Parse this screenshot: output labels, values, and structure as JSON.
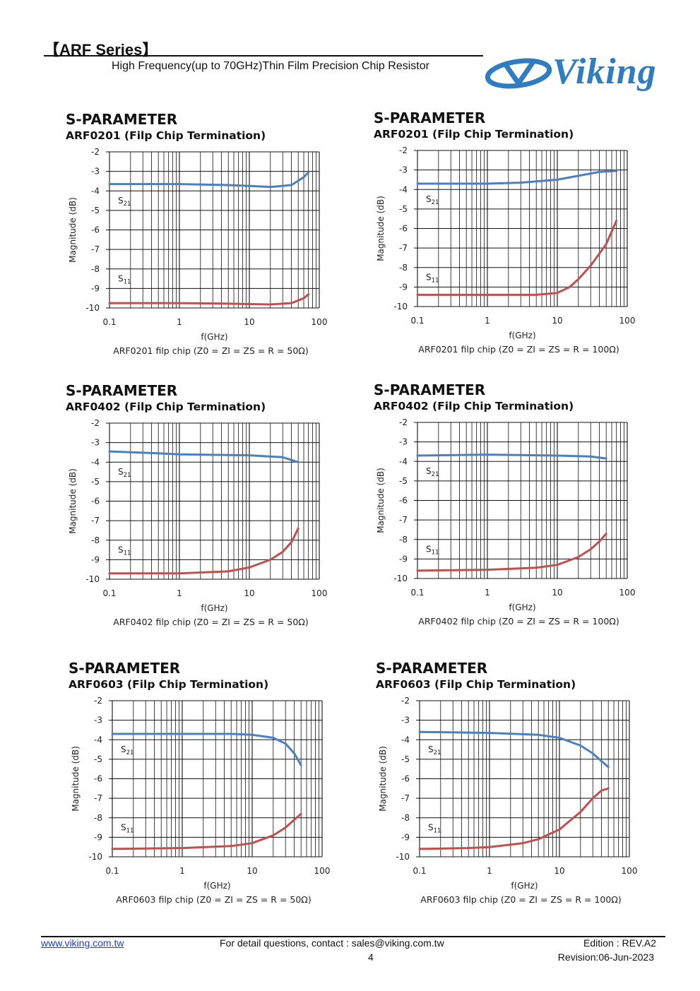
{
  "header": {
    "series_title": "【ARF Series】",
    "subtitle": "High Frequency(up to 70GHz)Thin Film Precision Chip Resistor",
    "logo_text": "Viking",
    "brand_color": "#2f7cc0"
  },
  "footer": {
    "website": "www.viking.com.tw",
    "contact": "For detail questions, contact : sales@viking.com.tw",
    "page_number": "4",
    "edition": "Edition : REV.A2",
    "revision": "Revision:06-Jun-2023"
  },
  "colors": {
    "s21": "#4a7fc1",
    "s11": "#c0504d",
    "grid": "#111111"
  },
  "chart_data": [
    {
      "type": "line",
      "section_title": "S-PARAMETER",
      "title": "ARF0201 (Filp Chip Termination)",
      "caption": "ARF0201 filp chip (Z0 = ZI = ZS = R = 50Ω)",
      "xlabel": "f(GHz)",
      "ylabel": "Magnitude (dB)",
      "xscale": "log",
      "xlim": [
        0.1,
        100
      ],
      "ylim": [
        -10,
        -2
      ],
      "xticks": [
        "0.1",
        "1",
        "10",
        "100"
      ],
      "yticks": [
        "-2",
        "-3",
        "-4",
        "-5",
        "-6",
        "-7",
        "-8",
        "-9",
        "-10"
      ],
      "series": [
        {
          "name": "S21",
          "x": [
            0.1,
            1,
            5,
            10,
            20,
            40,
            60,
            70
          ],
          "y": [
            -3.65,
            -3.65,
            -3.7,
            -3.75,
            -3.8,
            -3.7,
            -3.3,
            -3.05
          ]
        },
        {
          "name": "S11",
          "x": [
            0.1,
            1,
            5,
            10,
            20,
            40,
            60,
            70
          ],
          "y": [
            -9.75,
            -9.75,
            -9.78,
            -9.8,
            -9.82,
            -9.75,
            -9.5,
            -9.3
          ]
        }
      ]
    },
    {
      "type": "line",
      "section_title": "S-PARAMETER",
      "title": "ARF0201 (Filp Chip Termination)",
      "caption": "ARF0201 filp chip (Z0 = ZI = ZS = R = 100Ω)",
      "xlabel": "f(GHz)",
      "ylabel": "Magnitude (dB)",
      "xscale": "log",
      "xlim": [
        0.1,
        100
      ],
      "ylim": [
        -10,
        -2
      ],
      "xticks": [
        "0.1",
        "1",
        "10",
        "100"
      ],
      "yticks": [
        "-2",
        "-3",
        "-4",
        "-5",
        "-6",
        "-7",
        "-8",
        "-9",
        "-10"
      ],
      "series": [
        {
          "name": "S21",
          "x": [
            0.1,
            1,
            3,
            10,
            20,
            40,
            70
          ],
          "y": [
            -3.7,
            -3.7,
            -3.65,
            -3.5,
            -3.3,
            -3.1,
            -3.05
          ]
        },
        {
          "name": "S11",
          "x": [
            0.1,
            1,
            5,
            10,
            15,
            20,
            30,
            50,
            70
          ],
          "y": [
            -9.4,
            -9.4,
            -9.4,
            -9.3,
            -9.0,
            -8.6,
            -7.9,
            -6.8,
            -5.6
          ]
        }
      ]
    },
    {
      "type": "line",
      "section_title": "S-PARAMETER",
      "title": "ARF0402 (Filp Chip Termination)",
      "caption": "ARF0402 filp chip (Z0 = ZI = ZS = R = 50Ω)",
      "xlabel": "f(GHz)",
      "ylabel": "Magnitude (dB)",
      "xscale": "log",
      "xlim": [
        0.1,
        100
      ],
      "ylim": [
        -10,
        -2
      ],
      "xticks": [
        "0.1",
        "1",
        "10",
        "100"
      ],
      "yticks": [
        "-2",
        "-3",
        "-4",
        "-5",
        "-6",
        "-7",
        "-8",
        "-9",
        "-10"
      ],
      "series": [
        {
          "name": "S21",
          "x": [
            0.1,
            0.5,
            1,
            10,
            30,
            50
          ],
          "y": [
            -3.45,
            -3.55,
            -3.6,
            -3.65,
            -3.75,
            -4.0
          ]
        },
        {
          "name": "S11",
          "x": [
            0.1,
            1,
            5,
            10,
            20,
            30,
            40,
            50
          ],
          "y": [
            -9.7,
            -9.7,
            -9.6,
            -9.4,
            -9.0,
            -8.6,
            -8.1,
            -7.4
          ]
        }
      ]
    },
    {
      "type": "line",
      "section_title": "S-PARAMETER",
      "title": "ARF0402 (Filp Chip Termination)",
      "caption": "ARF0402 filp chip (Z0 = ZI = ZS = R = 100Ω)",
      "xlabel": "f(GHz)",
      "ylabel": "Magnitude (dB)",
      "xscale": "log",
      "xlim": [
        0.1,
        100
      ],
      "ylim": [
        -10,
        -2
      ],
      "xticks": [
        "0.1",
        "1",
        "10",
        "100"
      ],
      "yticks": [
        "-2",
        "-3",
        "-4",
        "-5",
        "-6",
        "-7",
        "-8",
        "-9",
        "-10"
      ],
      "series": [
        {
          "name": "S21",
          "x": [
            0.1,
            1,
            10,
            30,
            50
          ],
          "y": [
            -3.7,
            -3.65,
            -3.7,
            -3.75,
            -3.85
          ]
        },
        {
          "name": "S11",
          "x": [
            0.1,
            1,
            5,
            10,
            20,
            30,
            40,
            50
          ],
          "y": [
            -9.6,
            -9.55,
            -9.45,
            -9.3,
            -8.9,
            -8.5,
            -8.1,
            -7.7
          ]
        }
      ]
    },
    {
      "type": "line",
      "section_title": "S-PARAMETER",
      "title": "ARF0603 (Filp Chip Termination)",
      "caption": "ARF0603 filp chip (Z0 = ZI = ZS = R = 50Ω)",
      "xlabel": "f(GHz)",
      "ylabel": "Magnitude (dB)",
      "xscale": "log",
      "xlim": [
        0.1,
        100
      ],
      "ylim": [
        -10,
        -2
      ],
      "xticks": [
        "0.1",
        "1",
        "10",
        "100"
      ],
      "yticks": [
        "-2",
        "-3",
        "-4",
        "-5",
        "-6",
        "-7",
        "-8",
        "-9",
        "-10"
      ],
      "series": [
        {
          "name": "S21",
          "x": [
            0.1,
            1,
            5,
            10,
            20,
            30,
            40,
            50
          ],
          "y": [
            -3.7,
            -3.7,
            -3.7,
            -3.75,
            -3.9,
            -4.2,
            -4.7,
            -5.3
          ]
        },
        {
          "name": "S11",
          "x": [
            0.1,
            1,
            5,
            10,
            20,
            30,
            40,
            50
          ],
          "y": [
            -9.6,
            -9.55,
            -9.45,
            -9.3,
            -8.9,
            -8.5,
            -8.1,
            -7.8
          ]
        }
      ]
    },
    {
      "type": "line",
      "section_title": "S-PARAMETER",
      "title": "ARF0603 (Filp Chip Termination)",
      "caption": "ARF0603 filp chip (Z0 = ZI = ZS = R = 100Ω)",
      "xlabel": "f(GHz)",
      "ylabel": "Magnitude (dB)",
      "xscale": "log",
      "xlim": [
        0.1,
        100
      ],
      "ylim": [
        -10,
        -2
      ],
      "xticks": [
        "0.1",
        "1",
        "10",
        "100"
      ],
      "yticks": [
        "-2",
        "-3",
        "-4",
        "-5",
        "-6",
        "-7",
        "-8",
        "-9",
        "-10"
      ],
      "series": [
        {
          "name": "S21",
          "x": [
            0.1,
            1,
            5,
            10,
            20,
            30,
            40,
            50
          ],
          "y": [
            -3.6,
            -3.65,
            -3.75,
            -3.9,
            -4.3,
            -4.7,
            -5.1,
            -5.4
          ]
        },
        {
          "name": "S11",
          "x": [
            0.1,
            0.5,
            1,
            3,
            5,
            10,
            20,
            30,
            40,
            50
          ],
          "y": [
            -9.6,
            -9.55,
            -9.5,
            -9.3,
            -9.1,
            -8.6,
            -7.7,
            -7.0,
            -6.6,
            -6.5
          ]
        }
      ]
    }
  ]
}
